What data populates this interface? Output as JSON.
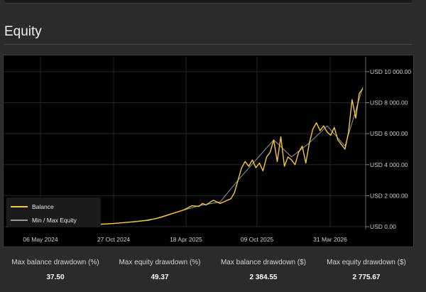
{
  "top_card": {},
  "section": {
    "title": "Equity"
  },
  "legend": {
    "balance_label": "Balance",
    "minmax_label": "Min / Max Equity"
  },
  "colors": {
    "balance": "#f5c842",
    "equity": "#9a9a9a",
    "background": "#000000",
    "grid": "#262626",
    "text": "#d0d0d0"
  },
  "chart_data": {
    "type": "line",
    "x_ticks": [
      "06 May 2024",
      "27 Oct 2024",
      "18 Apr 2025",
      "09 Oct 2025",
      "31 Mar 2026"
    ],
    "y_ticks": [
      "USD 0.00",
      "USD 2 000.00",
      "USD 4 000.00",
      "USD 6 000.00",
      "USD 8 000.00",
      "USD 10 000.00"
    ],
    "ylim": [
      0,
      10500
    ],
    "series": [
      {
        "name": "Balance",
        "x": [
          0.0,
          0.03,
          0.06,
          0.09,
          0.12,
          0.15,
          0.18,
          0.21,
          0.24,
          0.27,
          0.3,
          0.33,
          0.36,
          0.39,
          0.42,
          0.44,
          0.46,
          0.48,
          0.5,
          0.52,
          0.54,
          0.55,
          0.56,
          0.58,
          0.6,
          0.61,
          0.62,
          0.63,
          0.64,
          0.65,
          0.66,
          0.67,
          0.68,
          0.69,
          0.7,
          0.71,
          0.72,
          0.73,
          0.74,
          0.75,
          0.76,
          0.77,
          0.78,
          0.79,
          0.8,
          0.81,
          0.82,
          0.83,
          0.84,
          0.85,
          0.86,
          0.87,
          0.88,
          0.89,
          0.9,
          0.91,
          0.92,
          0.93,
          0.94,
          0.95,
          0.96,
          0.97,
          0.98,
          0.99,
          1.0
        ],
        "y": [
          0,
          10,
          20,
          30,
          40,
          50,
          70,
          90,
          120,
          160,
          200,
          260,
          320,
          400,
          520,
          650,
          800,
          950,
          1100,
          1350,
          1300,
          1500,
          1400,
          1700,
          1500,
          1600,
          1700,
          1800,
          2200,
          3000,
          3800,
          4200,
          3900,
          4300,
          3800,
          4100,
          3600,
          4500,
          4800,
          5600,
          4200,
          5800,
          3900,
          4500,
          4300,
          4000,
          4800,
          5200,
          4100,
          5400,
          6300,
          6700,
          6200,
          6500,
          6100,
          5900,
          6400,
          5600,
          5300,
          5000,
          6100,
          8200,
          7000,
          8600,
          8900
        ]
      },
      {
        "name": "Min / Max Equity",
        "x": [
          0.0,
          0.1,
          0.2,
          0.3,
          0.4,
          0.48,
          0.54,
          0.6,
          0.65,
          0.7,
          0.75,
          0.8,
          0.85,
          0.9,
          0.95,
          1.0
        ],
        "y": [
          0,
          30,
          100,
          200,
          400,
          950,
          1350,
          1600,
          3000,
          4300,
          5600,
          4500,
          5400,
          6500,
          5200,
          9000
        ]
      }
    ]
  },
  "stats": [
    {
      "label": "Max balance drawdown (%)",
      "value": "37.50"
    },
    {
      "label": "Max equity drawdown (%)",
      "value": "49.37"
    },
    {
      "label": "Max balance drawdown ($)",
      "value": "2 384.55"
    },
    {
      "label": "Max equity drawdown ($)",
      "value": "2 775.67"
    }
  ]
}
